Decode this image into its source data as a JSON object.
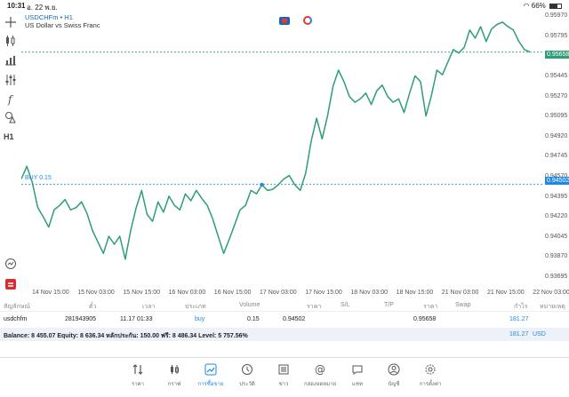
{
  "status": {
    "time": "10:31",
    "date": "อ. 22 พ.ย.",
    "battery": "66%"
  },
  "symbol": {
    "title": "USDCHFm • H1",
    "description": "US Dollar vs Swiss Franc"
  },
  "chart": {
    "buy_label": "BUY 0.15",
    "buy_price": "0.94502",
    "bid_price": "0.95658",
    "ask_price": "0.95670",
    "y_ticks": [
      "0.95970",
      "0.95795",
      "0.95620",
      "0.95445",
      "0.95270",
      "0.95095",
      "0.94920",
      "0.94745",
      "0.94570",
      "0.94395",
      "0.94220",
      "0.94045",
      "0.93870",
      "0.93695"
    ],
    "x_ticks": [
      "14 Nov 15:00",
      "15 Nov 03:00",
      "15 Nov 15:00",
      "16 Nov 03:00",
      "16 Nov 15:00",
      "17 Nov 03:00",
      "17 Nov 15:00",
      "18 Nov 03:00",
      "18 Nov 15:00",
      "21 Nov 03:00",
      "21 Nov 15:00",
      "22 Nov 03:00"
    ]
  },
  "chart_data": {
    "type": "line",
    "title": "USDCHFm • H1",
    "ylim": [
      0.936,
      0.9602
    ],
    "series": [
      {
        "name": "USDCHFm",
        "values": [
          0.9455,
          0.9466,
          0.9452,
          0.943,
          0.9422,
          0.9413,
          0.9428,
          0.9432,
          0.9437,
          0.9428,
          0.943,
          0.9435,
          0.9425,
          0.941,
          0.94,
          0.939,
          0.9405,
          0.9398,
          0.9405,
          0.9385,
          0.941,
          0.943,
          0.9445,
          0.9424,
          0.9418,
          0.9435,
          0.9426,
          0.944,
          0.9432,
          0.9428,
          0.9442,
          0.9436,
          0.9445,
          0.9438,
          0.9432,
          0.942,
          0.9405,
          0.939,
          0.9402,
          0.9415,
          0.9428,
          0.9432,
          0.9445,
          0.9442,
          0.945,
          0.9445,
          0.9446,
          0.945,
          0.9455,
          0.9458,
          0.945,
          0.9445,
          0.946,
          0.9488,
          0.9508,
          0.949,
          0.951,
          0.9536,
          0.955,
          0.954,
          0.9527,
          0.9522,
          0.9525,
          0.953,
          0.952,
          0.9532,
          0.9537,
          0.9527,
          0.9522,
          0.9525,
          0.9513,
          0.953,
          0.9545,
          0.954,
          0.951,
          0.9528,
          0.955,
          0.9546,
          0.9557,
          0.9568,
          0.9565,
          0.957,
          0.9585,
          0.9578,
          0.9588,
          0.9575,
          0.9586,
          0.959,
          0.9592,
          0.9588,
          0.9585,
          0.9575,
          0.9568,
          0.9566
        ]
      }
    ]
  },
  "table": {
    "headers": [
      "สัญลักษณ์",
      "ตั๋ว",
      "เวลา",
      "ประเภท",
      "Volume",
      "ราคา",
      "S/L",
      "T/P",
      "ราคา",
      "Swap",
      "กำไร",
      "หมายเหตุ"
    ],
    "row": {
      "symbol": "usdchfm",
      "ticket": "281943905",
      "time": "11.17 01:33",
      "type": "buy",
      "volume": "0.15",
      "open_price": "0.94502",
      "current_price": "0.95658",
      "profit": "181.27"
    },
    "balance": "Balance: 8 455.07 Equity: 8 636.34 หลักประกัน: 150.00 ฟรี: 8 486.34 Level: 5 757.56%",
    "total_profit": "181.27",
    "currency": "USD"
  },
  "nav": [
    {
      "label": "ราคา",
      "icon": "quotes-icon"
    },
    {
      "label": "กราฟ",
      "icon": "chart-icon"
    },
    {
      "label": "การซื้อขาย",
      "icon": "trade-icon"
    },
    {
      "label": "ประวัติ",
      "icon": "history-icon"
    },
    {
      "label": "ข่าว",
      "icon": "news-icon"
    },
    {
      "label": "กล่องจดหมาย",
      "icon": "mail-icon"
    },
    {
      "label": "แชท",
      "icon": "chat-icon"
    },
    {
      "label": "บัญชี",
      "icon": "account-icon"
    },
    {
      "label": "การตั้งค่า",
      "icon": "settings-icon"
    }
  ],
  "colors": {
    "line": "#2e9e74",
    "buy": "#1e88e5",
    "bid": "#2e9e74",
    "active": "#1e88e5"
  }
}
